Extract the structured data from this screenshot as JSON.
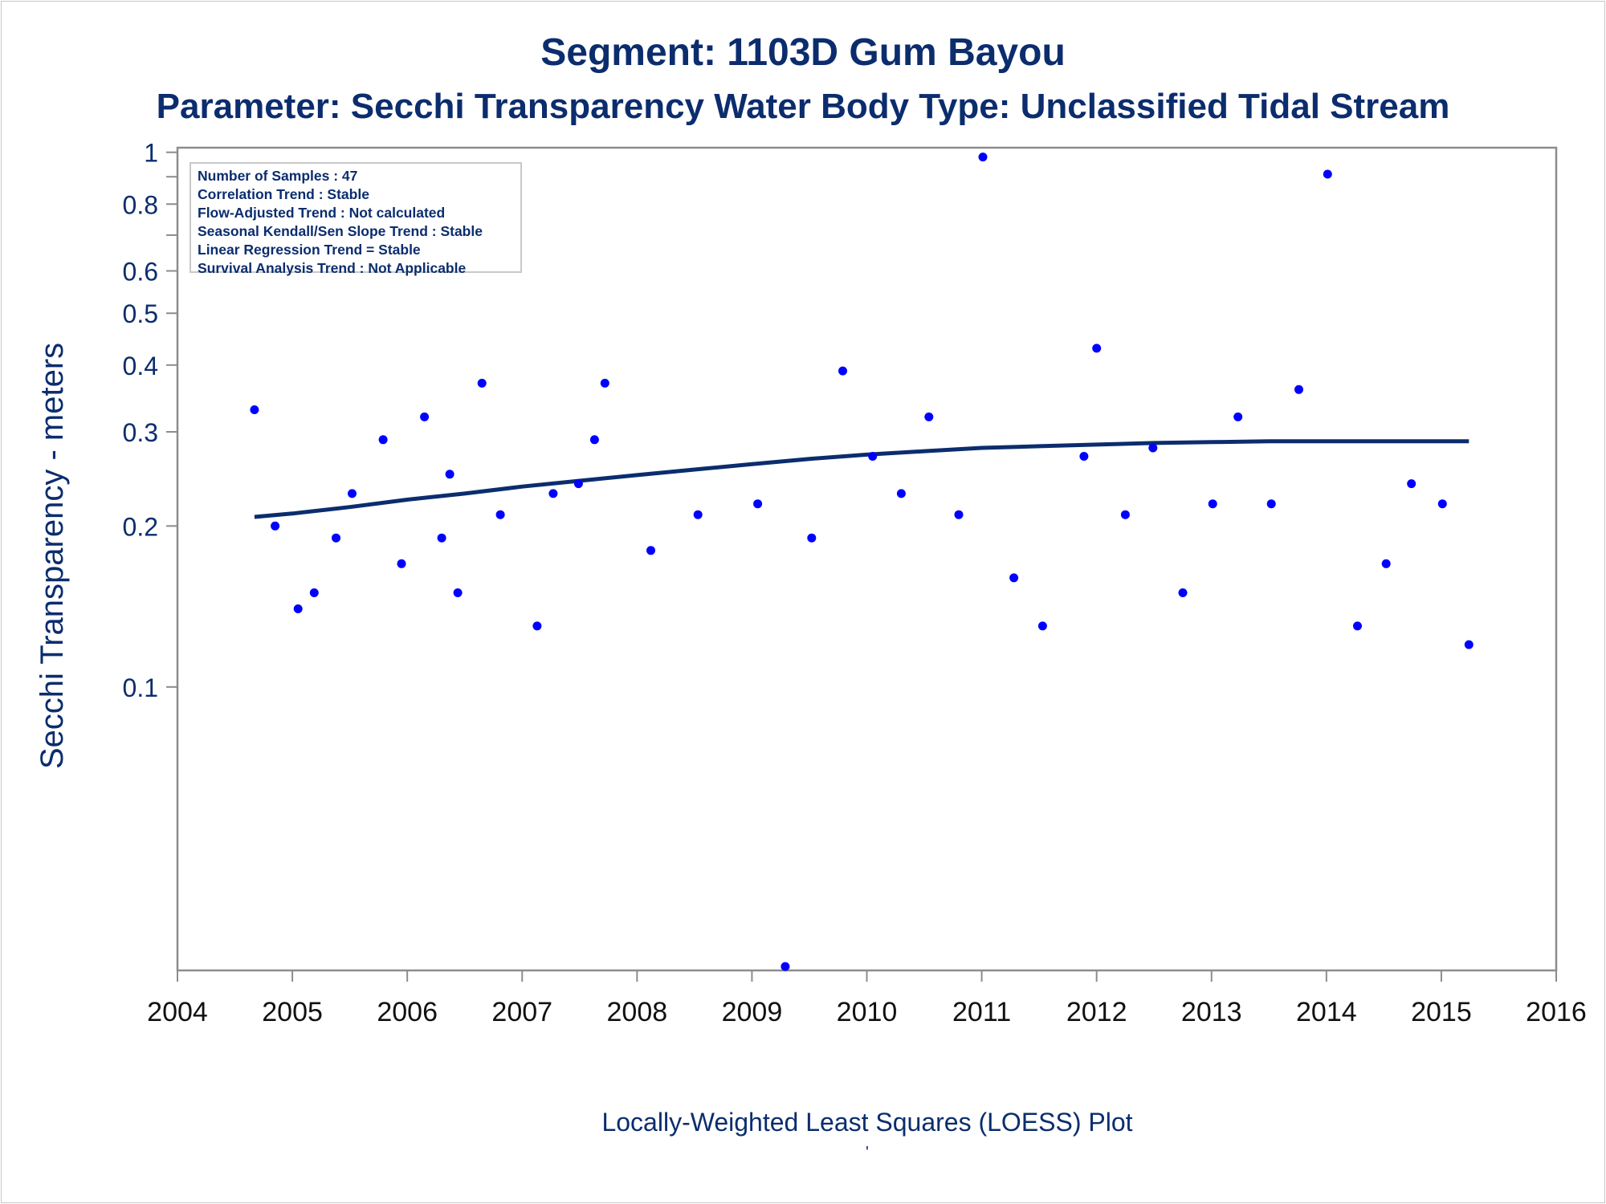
{
  "titles": {
    "line1": "Segment: 1103D  Gum Bayou",
    "line2": "Parameter: Secchi Transparency   Water Body Type: Unclassified Tidal Stream"
  },
  "stats_box": [
    "Number of Samples : 47",
    "Correlation Trend : Stable",
    "Flow-Adjusted Trend : Not calculated",
    "Seasonal Kendall/Sen Slope Trend : Stable",
    "Linear Regression Trend = Stable",
    "Survival Analysis Trend : Not Applicable"
  ],
  "footnote": "Locally-Weighted Least Squares (LOESS) Plot",
  "footmark": "'",
  "colors": {
    "text": "#0b2d6e",
    "points": "#0000ff",
    "loess": "#0b2d6e",
    "axis": "#8c8c8c"
  },
  "chart_data": {
    "type": "scatter",
    "ylabel": "Secchi Transparency - meters",
    "xlabel": "",
    "x_scale": "linear",
    "y_scale": "log",
    "xlim": [
      2004,
      2016
    ],
    "ylim": [
      0.0295,
      1.02
    ],
    "xticks": [
      2004,
      2005,
      2006,
      2007,
      2008,
      2009,
      2010,
      2011,
      2012,
      2013,
      2014,
      2015,
      2016
    ],
    "yticks": [
      0.1,
      0.2,
      0.3,
      0.4,
      0.5,
      0.6,
      0.8,
      1
    ],
    "yticks_minor": [
      0.7,
      0.9
    ],
    "grid": false,
    "series": [
      {
        "kind": "points",
        "points": [
          [
            2004.67,
            0.33
          ],
          [
            2004.85,
            0.2
          ],
          [
            2005.05,
            0.14
          ],
          [
            2005.19,
            0.15
          ],
          [
            2005.38,
            0.19
          ],
          [
            2005.52,
            0.23
          ],
          [
            2005.79,
            0.29
          ],
          [
            2005.95,
            0.17
          ],
          [
            2006.15,
            0.32
          ],
          [
            2006.3,
            0.19
          ],
          [
            2006.37,
            0.25
          ],
          [
            2006.44,
            0.15
          ],
          [
            2006.65,
            0.37
          ],
          [
            2006.81,
            0.21
          ],
          [
            2007.13,
            0.13
          ],
          [
            2007.27,
            0.23
          ],
          [
            2007.49,
            0.24
          ],
          [
            2007.63,
            0.29
          ],
          [
            2007.72,
            0.37
          ],
          [
            2008.12,
            0.18
          ],
          [
            2008.53,
            0.21
          ],
          [
            2009.05,
            0.22
          ],
          [
            2009.29,
            0.03
          ],
          [
            2009.52,
            0.19
          ],
          [
            2009.79,
            0.39
          ],
          [
            2010.05,
            0.27
          ],
          [
            2010.3,
            0.23
          ],
          [
            2010.54,
            0.32
          ],
          [
            2010.8,
            0.21
          ],
          [
            2011.01,
            0.98
          ],
          [
            2011.28,
            0.16
          ],
          [
            2011.53,
            0.13
          ],
          [
            2011.89,
            0.27
          ],
          [
            2012.0,
            0.43
          ],
          [
            2012.25,
            0.21
          ],
          [
            2012.49,
            0.28
          ],
          [
            2012.75,
            0.15
          ],
          [
            2013.01,
            0.22
          ],
          [
            2013.23,
            0.32
          ],
          [
            2013.52,
            0.22
          ],
          [
            2013.76,
            0.36
          ],
          [
            2014.01,
            0.91
          ],
          [
            2014.27,
            0.13
          ],
          [
            2014.52,
            0.17
          ],
          [
            2014.74,
            0.24
          ],
          [
            2015.01,
            0.22
          ],
          [
            2015.24,
            0.12
          ]
        ]
      },
      {
        "kind": "loess",
        "points": [
          [
            2004.67,
            0.208
          ],
          [
            2005.0,
            0.211
          ],
          [
            2005.5,
            0.217
          ],
          [
            2006.0,
            0.224
          ],
          [
            2006.5,
            0.23
          ],
          [
            2007.0,
            0.237
          ],
          [
            2007.5,
            0.243
          ],
          [
            2008.0,
            0.249
          ],
          [
            2008.5,
            0.255
          ],
          [
            2009.0,
            0.261
          ],
          [
            2009.5,
            0.267
          ],
          [
            2010.0,
            0.272
          ],
          [
            2010.5,
            0.276
          ],
          [
            2011.0,
            0.28
          ],
          [
            2011.5,
            0.282
          ],
          [
            2012.0,
            0.284
          ],
          [
            2012.5,
            0.286
          ],
          [
            2013.0,
            0.287
          ],
          [
            2013.5,
            0.288
          ],
          [
            2014.0,
            0.288
          ],
          [
            2014.5,
            0.288
          ],
          [
            2015.0,
            0.288
          ],
          [
            2015.24,
            0.288
          ]
        ]
      }
    ]
  }
}
